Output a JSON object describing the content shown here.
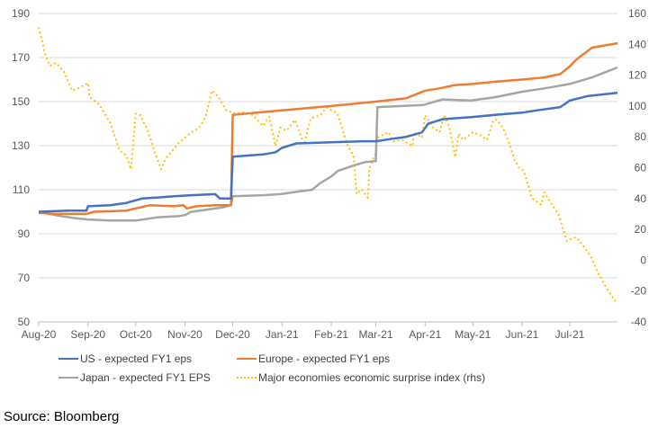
{
  "chart_data": {
    "type": "line",
    "title": "",
    "xlabel": "",
    "ylabel": "",
    "y2label": "",
    "xlim": [
      "2020-08-01",
      "2021-07-31"
    ],
    "ylim": [
      50,
      190
    ],
    "y2lim": [
      -40,
      160
    ],
    "grid": true,
    "legend_position": "bottom",
    "x_tick_labels": [
      {
        "date": "2020-08-01",
        "label": "Aug-20"
      },
      {
        "date": "2020-09-01",
        "label": "Sep-20"
      },
      {
        "date": "2020-10-01",
        "label": "Oct-20"
      },
      {
        "date": "2020-11-01",
        "label": "Nov-20"
      },
      {
        "date": "2020-12-01",
        "label": "Dec-20"
      },
      {
        "date": "2021-01-01",
        "label": "Jan-21"
      },
      {
        "date": "2021-02-01",
        "label": "Feb-21"
      },
      {
        "date": "2021-03-01",
        "label": "Mar-21"
      },
      {
        "date": "2021-04-01",
        "label": "Apr-21"
      },
      {
        "date": "2021-05-01",
        "label": "May-21"
      },
      {
        "date": "2021-06-01",
        "label": "Jun-21"
      },
      {
        "date": "2021-07-01",
        "label": "Jul-21"
      }
    ],
    "y_ticks": [
      "50",
      "70",
      "90",
      "110",
      "130",
      "150",
      "170",
      "190"
    ],
    "y2_ticks": [
      "-40",
      "-20",
      "0",
      "20",
      "40",
      "60",
      "80",
      "100",
      "120",
      "140",
      "160"
    ],
    "series": [
      {
        "name": "US - expected FY1 eps",
        "axis": "left",
        "color": "#4472C4",
        "style": "solid",
        "points": [
          [
            "2020-08-01",
            100
          ],
          [
            "2020-08-20",
            100.5
          ],
          [
            "2020-08-31",
            100.5
          ],
          [
            "2020-09-01",
            102.5
          ],
          [
            "2020-09-15",
            103
          ],
          [
            "2020-09-25",
            104
          ],
          [
            "2020-10-05",
            106
          ],
          [
            "2020-10-15",
            106.5
          ],
          [
            "2020-10-25",
            107
          ],
          [
            "2020-11-05",
            107.5
          ],
          [
            "2020-11-20",
            108
          ],
          [
            "2020-11-23",
            106
          ],
          [
            "2020-11-30",
            106
          ],
          [
            "2020-12-01",
            125
          ],
          [
            "2020-12-20",
            126
          ],
          [
            "2020-12-28",
            127
          ],
          [
            "2021-01-01",
            129
          ],
          [
            "2021-01-10",
            131
          ],
          [
            "2021-02-01",
            131.5
          ],
          [
            "2021-02-20",
            132
          ],
          [
            "2021-03-01",
            132
          ],
          [
            "2021-03-10",
            133
          ],
          [
            "2021-03-20",
            134
          ],
          [
            "2021-03-30",
            136
          ],
          [
            "2021-04-03",
            140
          ],
          [
            "2021-04-12",
            142
          ],
          [
            "2021-04-30",
            143
          ],
          [
            "2021-05-15",
            144
          ],
          [
            "2021-06-01",
            145
          ],
          [
            "2021-06-10",
            146
          ],
          [
            "2021-06-25",
            147.5
          ],
          [
            "2021-07-01",
            150.5
          ],
          [
            "2021-07-12",
            152.5
          ],
          [
            "2021-07-25",
            153.5
          ],
          [
            "2021-07-31",
            154
          ]
        ]
      },
      {
        "name": "Europe - expected FY1 eps",
        "axis": "left",
        "color": "#ED7D31",
        "style": "solid",
        "points": [
          [
            "2020-08-01",
            99.5
          ],
          [
            "2020-08-10",
            99
          ],
          [
            "2020-08-31",
            99
          ],
          [
            "2020-09-05",
            100
          ],
          [
            "2020-09-25",
            100.5
          ],
          [
            "2020-10-01",
            101.5
          ],
          [
            "2020-10-10",
            103
          ],
          [
            "2020-10-25",
            102.5
          ],
          [
            "2020-10-31",
            103
          ],
          [
            "2020-11-02",
            101.5
          ],
          [
            "2020-11-08",
            102.5
          ],
          [
            "2020-11-20",
            103
          ],
          [
            "2020-11-30",
            103
          ],
          [
            "2020-12-01",
            144
          ],
          [
            "2021-01-01",
            146
          ],
          [
            "2021-02-01",
            148
          ],
          [
            "2021-03-01",
            150
          ],
          [
            "2021-03-20",
            151.5
          ],
          [
            "2021-04-01",
            155
          ],
          [
            "2021-04-10",
            156
          ],
          [
            "2021-04-20",
            157.5
          ],
          [
            "2021-05-01",
            158
          ],
          [
            "2021-05-15",
            159
          ],
          [
            "2021-06-01",
            160
          ],
          [
            "2021-06-15",
            161
          ],
          [
            "2021-06-25",
            162.5
          ],
          [
            "2021-07-01",
            166
          ],
          [
            "2021-07-05",
            169
          ],
          [
            "2021-07-15",
            174.5
          ],
          [
            "2021-07-31",
            176.5
          ]
        ]
      },
      {
        "name": "Japan - expected FY1 EPS",
        "axis": "left",
        "color": "#A5A5A5",
        "style": "solid",
        "points": [
          [
            "2020-08-01",
            100
          ],
          [
            "2020-08-15",
            98
          ],
          [
            "2020-08-25",
            97
          ],
          [
            "2020-09-01",
            96.5
          ],
          [
            "2020-09-15",
            96
          ],
          [
            "2020-10-01",
            96
          ],
          [
            "2020-10-15",
            97.5
          ],
          [
            "2020-10-28",
            98
          ],
          [
            "2020-11-01",
            98.5
          ],
          [
            "2020-11-05",
            100
          ],
          [
            "2020-11-15",
            101
          ],
          [
            "2020-11-25",
            102
          ],
          [
            "2020-11-30",
            103
          ],
          [
            "2020-12-01",
            107
          ],
          [
            "2020-12-20",
            107.5
          ],
          [
            "2020-12-31",
            108
          ],
          [
            "2021-01-10",
            109
          ],
          [
            "2021-01-20",
            110
          ],
          [
            "2021-01-25",
            113
          ],
          [
            "2021-02-01",
            116
          ],
          [
            "2021-02-05",
            118.5
          ],
          [
            "2021-02-15",
            121
          ],
          [
            "2021-02-22",
            122.5
          ],
          [
            "2021-03-01",
            123
          ],
          [
            "2021-03-02",
            147.5
          ],
          [
            "2021-03-31",
            148.5
          ],
          [
            "2021-04-12",
            151
          ],
          [
            "2021-04-30",
            150.5
          ],
          [
            "2021-05-15",
            152
          ],
          [
            "2021-06-01",
            154.5
          ],
          [
            "2021-06-15",
            156
          ],
          [
            "2021-07-01",
            158
          ],
          [
            "2021-07-15",
            161
          ],
          [
            "2021-07-31",
            165.5
          ]
        ]
      },
      {
        "name": "Major economies economic surprise index (rhs)",
        "axis": "right",
        "color": "#FFC000",
        "style": "dotted",
        "points": [
          [
            "2020-08-01",
            151
          ],
          [
            "2020-08-05",
            134
          ],
          [
            "2020-08-08",
            126
          ],
          [
            "2020-08-12",
            128
          ],
          [
            "2020-08-17",
            122
          ],
          [
            "2020-08-22",
            110
          ],
          [
            "2020-08-27",
            112
          ],
          [
            "2020-09-01",
            115
          ],
          [
            "2020-09-02",
            106
          ],
          [
            "2020-09-08",
            101
          ],
          [
            "2020-09-15",
            89
          ],
          [
            "2020-09-21",
            71
          ],
          [
            "2020-09-25",
            68
          ],
          [
            "2020-09-28",
            59
          ],
          [
            "2020-10-01",
            95
          ],
          [
            "2020-10-04",
            94
          ],
          [
            "2020-10-09",
            83
          ],
          [
            "2020-10-13",
            70
          ],
          [
            "2020-10-17",
            59
          ],
          [
            "2020-10-20",
            66
          ],
          [
            "2020-10-28",
            76
          ],
          [
            "2020-11-05",
            83
          ],
          [
            "2020-11-10",
            86
          ],
          [
            "2020-11-14",
            93
          ],
          [
            "2020-11-18",
            110
          ],
          [
            "2020-11-22",
            106
          ],
          [
            "2020-11-27",
            97
          ],
          [
            "2020-12-03",
            95
          ],
          [
            "2020-12-07",
            96
          ],
          [
            "2020-12-14",
            94
          ],
          [
            "2020-12-20",
            87
          ],
          [
            "2020-12-24",
            93
          ],
          [
            "2020-12-28",
            74
          ],
          [
            "2020-12-31",
            86
          ],
          [
            "2021-01-04",
            84
          ],
          [
            "2021-01-09",
            91
          ],
          [
            "2021-01-15",
            75
          ],
          [
            "2021-01-19",
            92
          ],
          [
            "2021-01-25",
            94
          ],
          [
            "2021-01-29",
            99
          ],
          [
            "2021-02-05",
            95
          ],
          [
            "2021-02-11",
            75
          ],
          [
            "2021-02-15",
            67.5
          ],
          [
            "2021-02-17",
            43
          ],
          [
            "2021-02-20",
            46
          ],
          [
            "2021-02-24",
            40.5
          ],
          [
            "2021-02-25",
            60
          ],
          [
            "2021-03-01",
            69.6
          ],
          [
            "2021-03-02",
            79.5
          ],
          [
            "2021-03-09",
            83
          ],
          [
            "2021-03-12",
            77
          ],
          [
            "2021-03-18",
            78
          ],
          [
            "2021-03-24",
            74
          ],
          [
            "2021-03-25",
            83
          ],
          [
            "2021-03-30",
            79.5
          ],
          [
            "2021-04-01",
            94
          ],
          [
            "2021-04-06",
            86
          ],
          [
            "2021-04-10",
            83
          ],
          [
            "2021-04-13",
            94
          ],
          [
            "2021-04-16",
            87
          ],
          [
            "2021-04-20",
            66.7
          ],
          [
            "2021-04-22",
            82
          ],
          [
            "2021-04-25",
            78
          ],
          [
            "2021-05-01",
            83
          ],
          [
            "2021-05-06",
            81
          ],
          [
            "2021-05-10",
            78
          ],
          [
            "2021-05-14",
            91
          ],
          [
            "2021-05-16",
            91
          ],
          [
            "2021-05-20",
            86
          ],
          [
            "2021-05-24",
            75.5
          ],
          [
            "2021-05-27",
            65.7
          ],
          [
            "2021-05-30",
            60
          ],
          [
            "2021-06-02",
            58
          ],
          [
            "2021-06-05",
            48
          ],
          [
            "2021-06-07",
            40.5
          ],
          [
            "2021-06-13",
            36
          ],
          [
            "2021-06-15",
            44
          ],
          [
            "2021-06-19",
            37
          ],
          [
            "2021-06-24",
            30
          ],
          [
            "2021-06-29",
            12.5
          ],
          [
            "2021-07-05",
            15
          ],
          [
            "2021-07-09",
            10
          ],
          [
            "2021-07-14",
            3
          ],
          [
            "2021-07-18",
            -6.5
          ],
          [
            "2021-07-24",
            -18
          ],
          [
            "2021-07-30",
            -27
          ]
        ]
      }
    ]
  },
  "source": "Source: Bloomberg"
}
